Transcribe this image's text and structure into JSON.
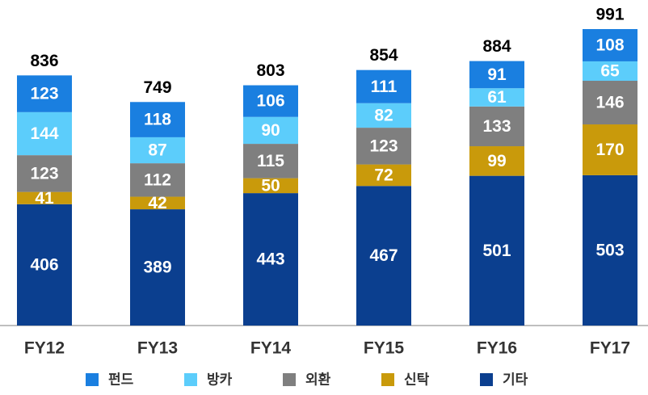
{
  "chart_data": {
    "type": "stacked_bar",
    "categories": [
      "FY12",
      "FY13",
      "FY14",
      "FY15",
      "FY16",
      "FY17"
    ],
    "series": [
      {
        "name": "펀드",
        "color": "#1a7fe0",
        "values": [
          123,
          118,
          106,
          111,
          91,
          108
        ]
      },
      {
        "name": "방카",
        "color": "#5ccdfb",
        "values": [
          144,
          87,
          90,
          82,
          61,
          65
        ]
      },
      {
        "name": "외환",
        "color": "#7f7f7f",
        "values": [
          123,
          112,
          115,
          123,
          133,
          146
        ]
      },
      {
        "name": "신탁",
        "color": "#c99a0b",
        "values": [
          41,
          42,
          50,
          72,
          99,
          170
        ]
      },
      {
        "name": "기타",
        "color": "#0b3f8f",
        "values": [
          406,
          389,
          443,
          467,
          501,
          503
        ]
      }
    ],
    "totals": [
      836,
      749,
      803,
      854,
      884,
      991
    ],
    "legend": "bottom"
  }
}
